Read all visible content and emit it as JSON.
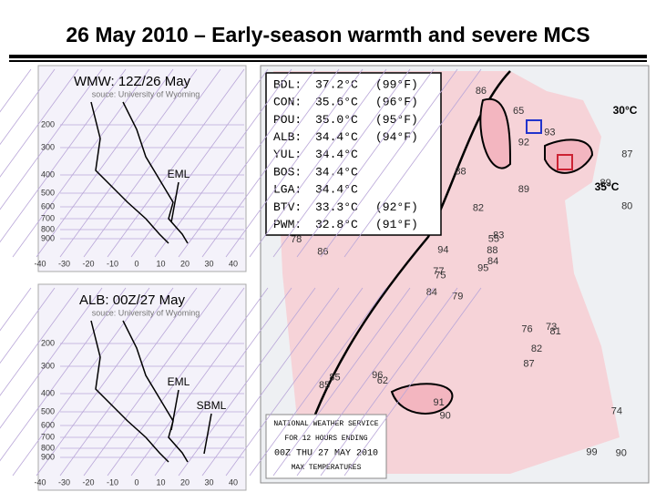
{
  "title": "26 May 2010 – Early-season warmth and severe MCS",
  "soundings": [
    {
      "label": "WMW: 12Z/26 May",
      "source": "souce: University of Wyoming",
      "annotations": [
        "EML"
      ]
    },
    {
      "label": "ALB: 00Z/27 May",
      "source": "souce: University of Wyoming",
      "annotations": [
        "EML",
        "SBML"
      ]
    }
  ],
  "sounding_axes": {
    "pressure": [
      200,
      300,
      400,
      500,
      600,
      700,
      800,
      900
    ],
    "temperature": [
      -40,
      -30,
      -20,
      -10,
      0,
      10,
      20,
      30,
      40
    ]
  },
  "stations": [
    {
      "id": "BDL:",
      "c": "37.2°C",
      "f": "(99°F)"
    },
    {
      "id": "CON:",
      "c": "35.6°C",
      "f": "(96°F)"
    },
    {
      "id": "POU:",
      "c": "35.0°C",
      "f": "(95°F)"
    },
    {
      "id": "ALB:",
      "c": "34.4°C",
      "f": "(94°F)"
    },
    {
      "id": "YUL:",
      "c": "34.4°C"
    },
    {
      "id": "BOS:",
      "c": "34.4°C"
    },
    {
      "id": "LGA:",
      "c": "34.4°C"
    },
    {
      "id": "BTV:",
      "c": "33.3°C",
      "f": "(92°F)"
    },
    {
      "id": "PWM:",
      "c": "32.8°C",
      "f": "(91°F)"
    }
  ],
  "map_annotations": [
    "30°C",
    "35°C"
  ],
  "map_temps": [
    "79",
    "75",
    "55",
    "62",
    "65",
    "88",
    "92",
    "95",
    "90",
    "86",
    "87",
    "84",
    "89",
    "82",
    "85",
    "83",
    "81",
    "78",
    "76",
    "80",
    "77",
    "91",
    "94",
    "93",
    "96",
    "99",
    "74",
    "73",
    "86",
    "87",
    "88",
    "90",
    "84",
    "85",
    "89",
    "82"
  ],
  "legend": [
    "NATIONAL WEATHER SERVICE",
    "FOR 12 HOURS ENDING",
    "00Z THU  27 MAY 2010",
    "MAX TEMPERATURES"
  ]
}
